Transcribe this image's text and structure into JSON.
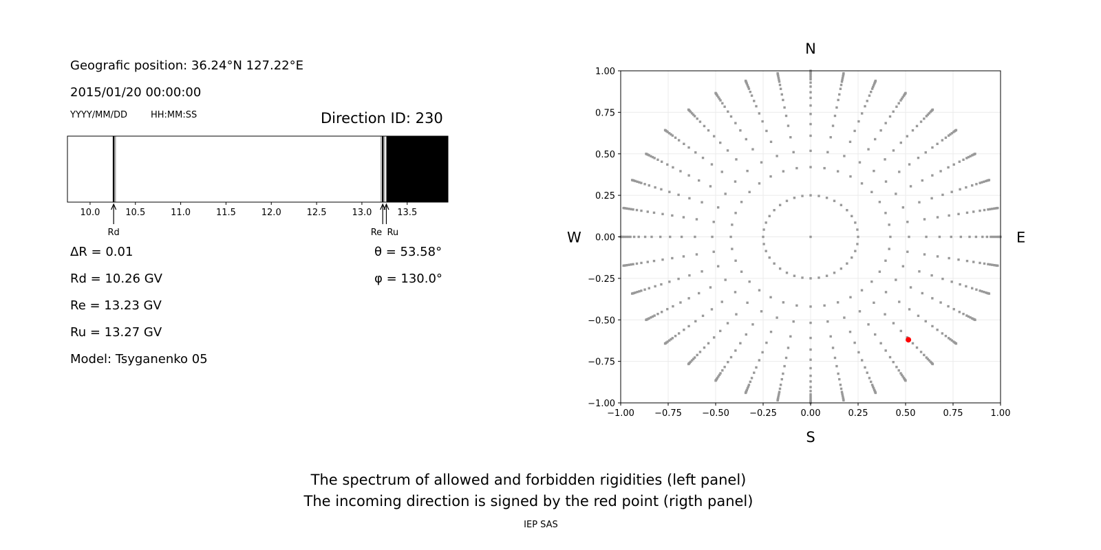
{
  "left_panel": {
    "geo_position": "Geografic position: 36.24°N 127.22°E",
    "datetime": "2015/01/20 00:00:00",
    "date_format": "YYYY/MM/DD",
    "time_format": "HH:MM:SS",
    "direction_id": "Direction ID: 230",
    "delta_r": "ΔR = 0.01",
    "rd": "Rd = 10.26 GV",
    "re": "Re = 13.23 GV",
    "ru": "Ru = 13.27 GV",
    "model": "Model: Tsyganenko 05",
    "theta": "θ = 53.58°",
    "phi": "φ = 130.0°"
  },
  "chart_data": [
    {
      "type": "bar",
      "xlim": [
        9.75,
        13.95
      ],
      "xticks": [
        "10.0",
        "10.5",
        "11.0",
        "11.5",
        "12.0",
        "12.5",
        "13.0",
        "13.5"
      ],
      "forbidden_lines": [
        10.26,
        13.23
      ],
      "penumbra_gray_lines": [
        10.28,
        13.21,
        13.25
      ],
      "forbidden_band": [
        13.27,
        13.95
      ],
      "markers": [
        {
          "label": "Rd",
          "value": 10.26
        },
        {
          "label": "Re",
          "value": 13.23
        },
        {
          "label": "Ru",
          "value": 13.27
        }
      ],
      "colors": {
        "forbidden": "#000000",
        "penumbra": "#aaaaaa",
        "allowed": "#ffffff"
      }
    },
    {
      "type": "scatter",
      "xlim": [
        -1,
        1
      ],
      "ylim": [
        -1,
        1
      ],
      "xticks": [
        "−1.00",
        "−0.75",
        "−0.50",
        "−0.25",
        "0.00",
        "0.25",
        "0.50",
        "0.75",
        "1.00"
      ],
      "yticks": [
        "−1.00",
        "−0.75",
        "−0.50",
        "−0.25",
        "0.00",
        "0.25",
        "0.50",
        "0.75",
        "1.00"
      ],
      "grid": true,
      "compass": {
        "N": "N",
        "S": "S",
        "E": "E",
        "W": "W"
      },
      "grid_radii": [
        0.25,
        0.42,
        0.518,
        0.609,
        0.679,
        0.74,
        0.791,
        0.837,
        0.871,
        0.905,
        0.929,
        0.949,
        0.96,
        0.971,
        0.982,
        0.99,
        0.996,
        1.0
      ],
      "azimuth_step_deg": 10,
      "center_point": [
        0,
        0
      ],
      "highlight_point": [
        0.515,
        -0.62
      ],
      "colors": {
        "points": "#999999",
        "highlight": "#ff0000"
      }
    }
  ],
  "footer": {
    "line1": "The spectrum of allowed and forbidden rigidities (left panel)",
    "line2": "The incoming direction is signed by the red point (rigth panel)",
    "credit": "IEP SAS"
  }
}
